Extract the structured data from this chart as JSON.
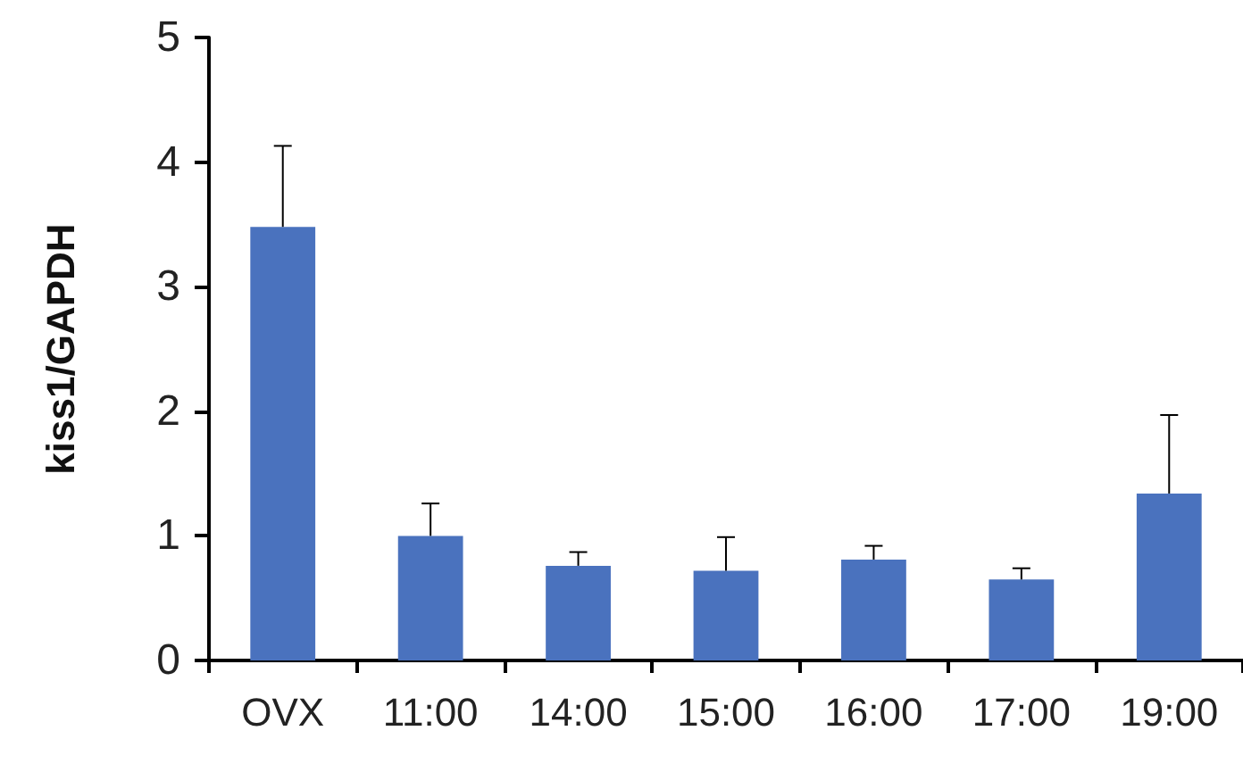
{
  "chart_data": {
    "type": "bar",
    "ylabel": "kiss1/GAPDH",
    "categories": [
      "OVX",
      "11:00",
      "14:00",
      "15:00",
      "16:00",
      "17:00",
      "19:00"
    ],
    "values": [
      3.48,
      1.0,
      0.76,
      0.72,
      0.81,
      0.65,
      1.34
    ],
    "errors": [
      [
        3.48,
        4.13
      ],
      [
        1.0,
        1.26
      ],
      [
        0.76,
        0.87
      ],
      [
        0.72,
        0.99
      ],
      [
        0.81,
        0.92
      ],
      [
        0.65,
        0.74
      ],
      [
        1.34,
        1.97
      ]
    ],
    "color": "#4a72be",
    "ylim": [
      0,
      5
    ],
    "yticks": [
      0,
      1,
      2,
      3,
      4,
      5
    ]
  }
}
